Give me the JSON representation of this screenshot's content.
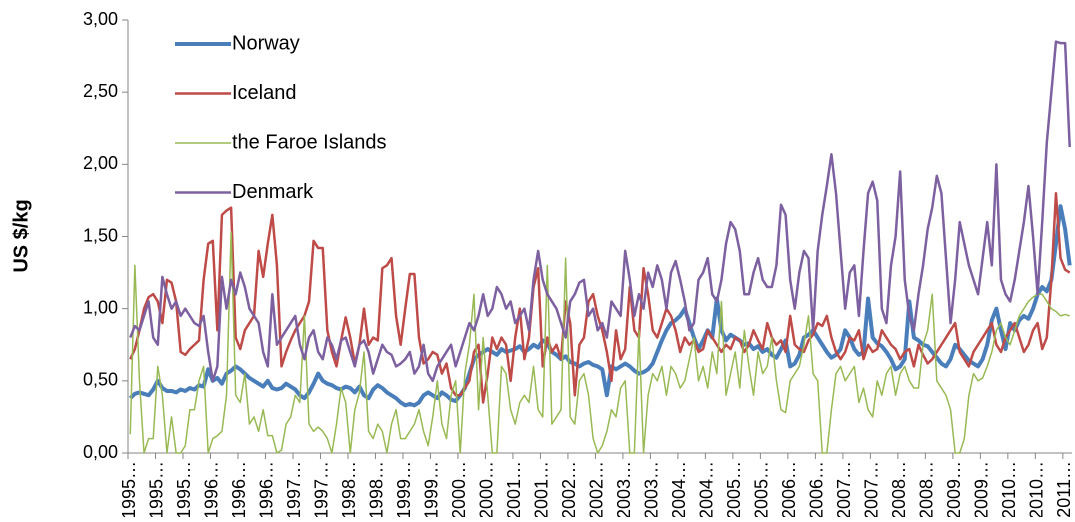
{
  "chart_data": {
    "type": "line",
    "y_label": "US $/kg",
    "ylim": [
      0,
      3
    ],
    "yticks": [
      {
        "value": 0,
        "label": "0,00"
      },
      {
        "value": 0.5,
        "label": "0,50"
      },
      {
        "value": 1,
        "label": "1,00"
      },
      {
        "value": 1.5,
        "label": "1,50"
      },
      {
        "value": 2,
        "label": "2,00"
      },
      {
        "value": 2.5,
        "label": "2,50"
      },
      {
        "value": 3,
        "label": "3,00"
      }
    ],
    "grid": false,
    "legend": "upper left",
    "categories": [
      "1995…",
      null,
      null,
      null,
      null,
      null,
      "1995…",
      null,
      null,
      null,
      null,
      null,
      "1995…",
      null,
      null,
      null,
      null,
      null,
      "1996…",
      null,
      null,
      null,
      null,
      null,
      "1996…",
      null,
      null,
      null,
      null,
      null,
      "1996…",
      null,
      null,
      null,
      null,
      null,
      "1997…",
      null,
      null,
      null,
      null,
      null,
      "1997…",
      null,
      null,
      null,
      null,
      null,
      "1998…",
      null,
      null,
      null,
      null,
      null,
      "1998…",
      null,
      null,
      null,
      null,
      null,
      "1999…",
      null,
      null,
      null,
      null,
      null,
      "1999…",
      null,
      null,
      null,
      null,
      null,
      "2000…",
      null,
      null,
      null,
      null,
      null,
      "2000…",
      null,
      null,
      null,
      null,
      null,
      "2001…",
      null,
      null,
      null,
      null,
      null,
      "2001…",
      null,
      null,
      null,
      null,
      null,
      "2002…",
      null,
      null,
      null,
      null,
      null,
      "2002…",
      null,
      null,
      null,
      null,
      null,
      "2003…",
      null,
      null,
      null,
      null,
      null,
      "2003…",
      null,
      null,
      null,
      null,
      null,
      "2004…",
      null,
      null,
      null,
      null,
      null,
      "2004…",
      null,
      null,
      null,
      null,
      null,
      "2005…",
      null,
      null,
      null,
      null,
      null,
      "2005…",
      null,
      null,
      null,
      null,
      null,
      "2006…",
      null,
      null,
      null,
      null,
      null,
      "2006…",
      null,
      null,
      null,
      null,
      null,
      "2007…",
      null,
      null,
      null,
      null,
      null,
      "2007…",
      null,
      null,
      null,
      null,
      null,
      "2008…",
      null,
      null,
      null,
      null,
      null,
      "2008…",
      null,
      null,
      null,
      null,
      null,
      "2009…",
      null,
      null,
      null,
      null,
      null,
      "2009…",
      null,
      null,
      null,
      null,
      null,
      "2010…",
      null,
      null,
      null,
      null,
      null,
      "2010…",
      null,
      null,
      null,
      null,
      null,
      "2011…",
      null
    ],
    "series": [
      {
        "name": "Norway",
        "color": "#4a7ebb",
        "values": [
          0.38,
          0.41,
          0.42,
          0.41,
          0.4,
          0.44,
          0.5,
          0.45,
          0.43,
          0.43,
          0.42,
          0.44,
          0.43,
          0.45,
          0.44,
          0.47,
          0.46,
          0.58,
          0.5,
          0.52,
          0.48,
          0.55,
          0.57,
          0.6,
          0.58,
          0.55,
          0.52,
          0.5,
          0.48,
          0.46,
          0.5,
          0.45,
          0.44,
          0.45,
          0.48,
          0.46,
          0.44,
          0.4,
          0.38,
          0.42,
          0.48,
          0.55,
          0.5,
          0.48,
          0.47,
          0.45,
          0.44,
          0.46,
          0.45,
          0.42,
          0.46,
          0.4,
          0.38,
          0.44,
          0.47,
          0.45,
          0.42,
          0.4,
          0.38,
          0.35,
          0.33,
          0.34,
          0.33,
          0.35,
          0.4,
          0.42,
          0.4,
          0.38,
          0.42,
          0.4,
          0.37,
          0.36,
          0.4,
          0.45,
          0.55,
          0.65,
          0.68,
          0.7,
          0.72,
          0.7,
          0.68,
          0.72,
          0.7,
          0.71,
          0.72,
          0.74,
          0.7,
          0.72,
          0.75,
          0.73,
          0.78,
          0.76,
          0.7,
          0.68,
          0.65,
          0.67,
          0.63,
          0.62,
          0.6,
          0.62,
          0.63,
          0.61,
          0.6,
          0.58,
          0.4,
          0.6,
          0.58,
          0.6,
          0.62,
          0.6,
          0.57,
          0.55,
          0.56,
          0.58,
          0.62,
          0.7,
          0.78,
          0.85,
          0.9,
          0.92,
          0.95,
          1.0,
          0.9,
          0.8,
          0.72,
          0.78,
          0.85,
          0.8,
          1.07,
          0.85,
          0.78,
          0.82,
          0.8,
          0.78,
          0.75,
          0.76,
          0.72,
          0.74,
          0.7,
          0.72,
          0.68,
          0.66,
          0.72,
          0.78,
          0.6,
          0.62,
          0.68,
          0.8,
          0.82,
          0.85,
          0.8,
          0.75,
          0.7,
          0.66,
          0.68,
          0.72,
          0.85,
          0.8,
          0.72,
          0.68,
          0.7,
          1.07,
          0.8,
          0.76,
          0.74,
          0.7,
          0.65,
          0.58,
          0.6,
          0.65,
          1.05,
          0.8,
          0.78,
          0.75,
          0.74,
          0.7,
          0.66,
          0.62,
          0.6,
          0.65,
          0.75,
          0.72,
          0.68,
          0.64,
          0.62,
          0.6,
          0.65,
          0.75,
          0.92,
          1.0,
          0.85,
          0.72,
          0.9,
          0.85,
          0.92,
          0.95,
          0.93,
          1.0,
          1.1,
          1.15,
          1.12,
          1.2,
          1.45,
          1.71,
          1.55,
          1.3
        ]
      },
      {
        "name": "Iceland",
        "color": "#be4b48",
        "values": [
          0.65,
          0.72,
          0.85,
          1.0,
          1.08,
          1.1,
          1.05,
          0.9,
          1.2,
          1.18,
          1.05,
          0.7,
          0.68,
          0.72,
          0.75,
          0.78,
          1.2,
          1.45,
          1.47,
          0.85,
          1.65,
          1.68,
          1.7,
          0.8,
          0.72,
          0.85,
          0.9,
          0.95,
          1.4,
          1.22,
          1.45,
          1.65,
          1.3,
          0.6,
          0.7,
          0.78,
          0.85,
          0.9,
          0.95,
          1.05,
          1.47,
          1.42,
          1.42,
          0.85,
          0.7,
          0.6,
          0.78,
          0.94,
          0.8,
          0.62,
          0.75,
          1.0,
          0.75,
          0.8,
          0.78,
          1.28,
          1.3,
          1.35,
          0.95,
          0.75,
          1.0,
          1.24,
          1.24,
          0.8,
          0.62,
          0.65,
          0.7,
          0.68,
          0.55,
          0.62,
          0.45,
          0.4,
          0.4,
          0.45,
          0.5,
          0.7,
          0.75,
          0.35,
          0.55,
          0.8,
          0.72,
          0.8,
          0.75,
          0.5,
          0.8,
          1.0,
          0.65,
          0.8,
          1.15,
          1.28,
          0.6,
          0.8,
          0.7,
          0.75,
          0.65,
          1.05,
          0.9,
          0.4,
          0.75,
          0.8,
          1.05,
          1.1,
          0.95,
          0.85,
          0.7,
          0.5,
          0.85,
          0.65,
          0.72,
          1.15,
          0.85,
          0.8,
          1.28,
          1.1,
          0.85,
          0.8,
          0.9,
          1.0,
          0.95,
          0.85,
          0.7,
          0.8,
          0.75,
          0.78,
          0.7,
          0.72,
          0.85,
          0.8,
          0.75,
          0.7,
          0.75,
          0.72,
          0.8,
          0.78,
          0.7,
          0.75,
          0.85,
          0.78,
          0.72,
          0.9,
          0.8,
          0.75,
          0.78,
          0.7,
          0.95,
          0.75,
          0.72,
          0.7,
          0.78,
          0.82,
          0.9,
          0.88,
          0.95,
          0.8,
          0.7,
          0.65,
          0.7,
          0.8,
          0.78,
          0.85,
          0.65,
          0.75,
          0.7,
          0.72,
          0.85,
          0.8,
          0.75,
          0.72,
          0.65,
          0.7,
          0.72,
          0.6,
          0.75,
          0.68,
          0.62,
          0.65,
          0.7,
          0.75,
          0.8,
          0.85,
          0.9,
          0.7,
          0.65,
          0.6,
          0.7,
          0.75,
          0.8,
          0.85,
          0.9,
          0.75,
          0.7,
          0.8,
          0.85,
          0.9,
          0.8,
          0.7,
          0.75,
          0.85,
          0.9,
          0.72,
          0.8,
          1.2,
          1.8,
          1.35,
          1.27,
          1.25
        ]
      },
      {
        "name": "the Faroe Islands",
        "color": "#98b954",
        "values": [
          0.13,
          1.3,
          0.5,
          0.0,
          0.1,
          0.1,
          0.6,
          0.4,
          0.0,
          0.25,
          0.0,
          0.0,
          0.05,
          0.3,
          0.3,
          0.5,
          0.6,
          0.0,
          0.1,
          0.12,
          0.15,
          0.4,
          1.53,
          0.4,
          0.35,
          0.55,
          0.2,
          0.25,
          0.15,
          0.3,
          0.12,
          0.12,
          0.0,
          0.02,
          0.2,
          0.25,
          0.4,
          0.35,
          0.95,
          0.2,
          0.15,
          0.18,
          0.15,
          0.1,
          0.0,
          0.2,
          0.45,
          0.35,
          0.0,
          0.3,
          0.42,
          0.7,
          0.15,
          0.1,
          0.2,
          0.15,
          0.0,
          0.2,
          0.3,
          0.1,
          0.1,
          0.15,
          0.2,
          0.3,
          0.15,
          0.05,
          0.25,
          0.5,
          0.2,
          0.1,
          0.4,
          0.5,
          0.0,
          0.55,
          0.75,
          1.1,
          0.3,
          0.8,
          0.4,
          0.0,
          0.0,
          0.6,
          0.55,
          0.3,
          0.2,
          0.35,
          0.4,
          0.35,
          0.6,
          0.3,
          0.25,
          1.3,
          0.2,
          0.25,
          0.3,
          1.35,
          0.25,
          0.2,
          0.5,
          0.55,
          0.4,
          0.1,
          0.0,
          0.05,
          0.15,
          0.3,
          0.25,
          0.45,
          0.5,
          0.0,
          0.0,
          0.85,
          0.0,
          0.4,
          0.55,
          0.5,
          0.6,
          0.4,
          0.6,
          0.55,
          0.45,
          0.5,
          0.65,
          0.8,
          0.5,
          0.6,
          0.45,
          0.7,
          0.55,
          1.05,
          0.4,
          0.55,
          0.7,
          0.45,
          0.85,
          0.6,
          0.4,
          0.7,
          0.55,
          0.6,
          0.8,
          0.5,
          0.3,
          0.28,
          0.5,
          0.55,
          0.6,
          0.75,
          0.95,
          0.55,
          0.5,
          0.0,
          0.0,
          0.3,
          0.55,
          0.6,
          0.5,
          0.55,
          0.6,
          0.35,
          0.45,
          0.3,
          0.25,
          0.5,
          0.4,
          0.55,
          0.6,
          0.4,
          0.55,
          0.6,
          0.5,
          0.45,
          0.45,
          0.75,
          0.85,
          1.1,
          0.5,
          0.45,
          0.4,
          0.3,
          0.0,
          0.0,
          0.1,
          0.4,
          0.55,
          0.5,
          0.52,
          0.6,
          0.7,
          0.85,
          0.9,
          0.8,
          0.75,
          0.85,
          0.95,
          1.0,
          1.05,
          1.08,
          1.1,
          1.1,
          1.05,
          1.0,
          0.98,
          0.95,
          0.96,
          0.95
        ]
      },
      {
        "name": "Denmark",
        "color": "#7d60a0",
        "values": [
          0.8,
          0.88,
          0.85,
          0.95,
          1.05,
          0.8,
          0.75,
          1.22,
          1.1,
          1.0,
          1.05,
          0.95,
          1.0,
          0.95,
          0.9,
          0.88,
          0.95,
          0.7,
          0.5,
          0.6,
          1.22,
          1.0,
          1.2,
          1.1,
          1.25,
          1.15,
          1.0,
          0.95,
          0.9,
          0.7,
          0.6,
          1.1,
          0.75,
          0.8,
          0.85,
          0.9,
          0.95,
          0.75,
          0.65,
          0.8,
          0.85,
          0.7,
          0.65,
          0.8,
          0.75,
          0.65,
          0.78,
          0.8,
          0.7,
          0.6,
          0.75,
          0.78,
          0.7,
          0.55,
          0.65,
          0.75,
          0.7,
          0.68,
          0.6,
          0.62,
          0.65,
          0.7,
          0.55,
          0.6,
          0.75,
          0.55,
          0.5,
          0.6,
          0.65,
          0.7,
          0.75,
          0.6,
          0.7,
          0.8,
          0.9,
          0.85,
          0.95,
          1.1,
          0.95,
          1.0,
          1.15,
          1.1,
          1.0,
          1.05,
          0.9,
          0.95,
          1.0,
          0.85,
          1.2,
          1.4,
          1.2,
          1.1,
          1.05,
          1.0,
          0.9,
          0.8,
          1.05,
          1.1,
          1.18,
          1.2,
          0.95,
          1.0,
          0.85,
          0.9,
          0.8,
          1.05,
          1.0,
          0.95,
          1.4,
          1.2,
          0.95,
          1.1,
          1.0,
          1.25,
          1.15,
          1.3,
          1.2,
          1.0,
          1.25,
          1.33,
          1.2,
          1.05,
          0.85,
          0.9,
          1.2,
          1.25,
          1.35,
          1.1,
          1.05,
          1.2,
          1.45,
          1.6,
          1.55,
          1.4,
          1.1,
          1.1,
          1.25,
          1.35,
          1.2,
          1.15,
          1.15,
          1.3,
          1.72,
          1.65,
          1.2,
          1.0,
          1.25,
          1.4,
          1.35,
          0.85,
          1.4,
          1.65,
          1.85,
          2.07,
          1.8,
          1.4,
          1.0,
          1.25,
          1.3,
          0.95,
          1.4,
          1.8,
          1.88,
          1.75,
          1.0,
          0.9,
          1.3,
          1.5,
          1.95,
          1.2,
          0.95,
          0.85,
          1.1,
          1.3,
          1.55,
          1.7,
          1.92,
          1.8,
          1.35,
          0.9,
          1.2,
          1.6,
          1.45,
          1.3,
          1.2,
          1.1,
          1.35,
          1.6,
          1.3,
          2.0,
          1.2,
          1.1,
          1.05,
          1.2,
          1.4,
          1.6,
          1.85,
          1.5,
          1.1,
          1.6,
          2.15,
          2.5,
          2.85,
          2.84,
          2.84,
          2.12
        ]
      }
    ]
  }
}
